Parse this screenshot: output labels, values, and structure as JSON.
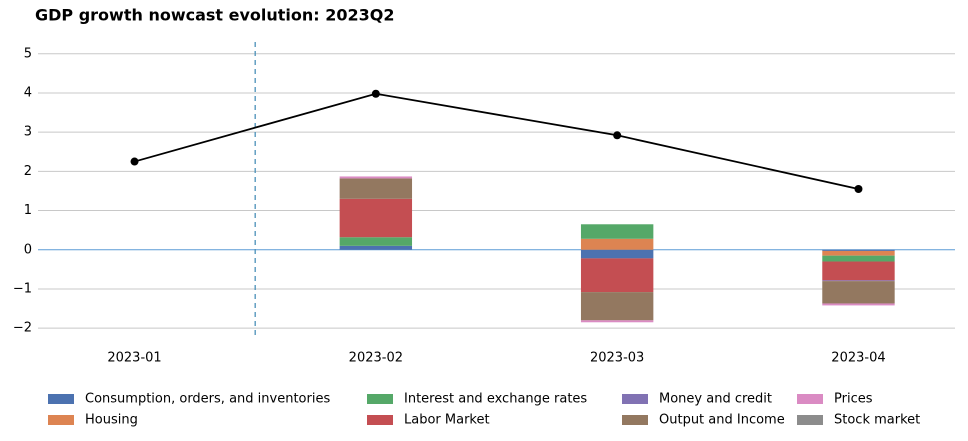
{
  "chart_data": {
    "type": "stacked_bar_line",
    "title": "GDP growth nowcast evolution: 2023Q2",
    "categories": [
      "2023-01",
      "2023-02",
      "2023-03",
      "2023-04"
    ],
    "series": [
      {
        "name": "Consumption, orders, and inventories",
        "color": "#4c72b0",
        "values": [
          0,
          0.1,
          -0.22,
          -0.03
        ]
      },
      {
        "name": "Housing",
        "color": "#dd8452",
        "values": [
          0,
          0,
          0.28,
          -0.12
        ]
      },
      {
        "name": "Interest and exchange rates",
        "color": "#55a868",
        "values": [
          0,
          0.22,
          0.37,
          -0.15
        ]
      },
      {
        "name": "Labor Market",
        "color": "#c44e52",
        "values": [
          0,
          0.98,
          -0.86,
          -0.48
        ]
      },
      {
        "name": "Money and credit",
        "color": "#8172b3",
        "values": [
          0,
          0,
          0,
          -0.02
        ]
      },
      {
        "name": "Output and Income",
        "color": "#937860",
        "values": [
          0,
          0.52,
          -0.72,
          -0.57
        ]
      },
      {
        "name": "Prices",
        "color": "#da8bc3",
        "values": [
          0,
          0.05,
          -0.05,
          -0.05
        ]
      },
      {
        "name": "Stock market",
        "color": "#8c8c8c",
        "values": [
          0,
          0,
          0,
          0
        ]
      }
    ],
    "line": {
      "color": "#000000",
      "values": [
        2.25,
        3.98,
        2.92,
        1.55
      ]
    },
    "ylim": [
      -2.2,
      5.3
    ],
    "yticks": [
      {
        "value": -2,
        "label": "−2"
      },
      {
        "value": -1,
        "label": "−1"
      },
      0,
      1,
      2,
      3,
      4,
      5
    ],
    "grid": true,
    "vline_x": 0.5,
    "legend": "bottom"
  }
}
